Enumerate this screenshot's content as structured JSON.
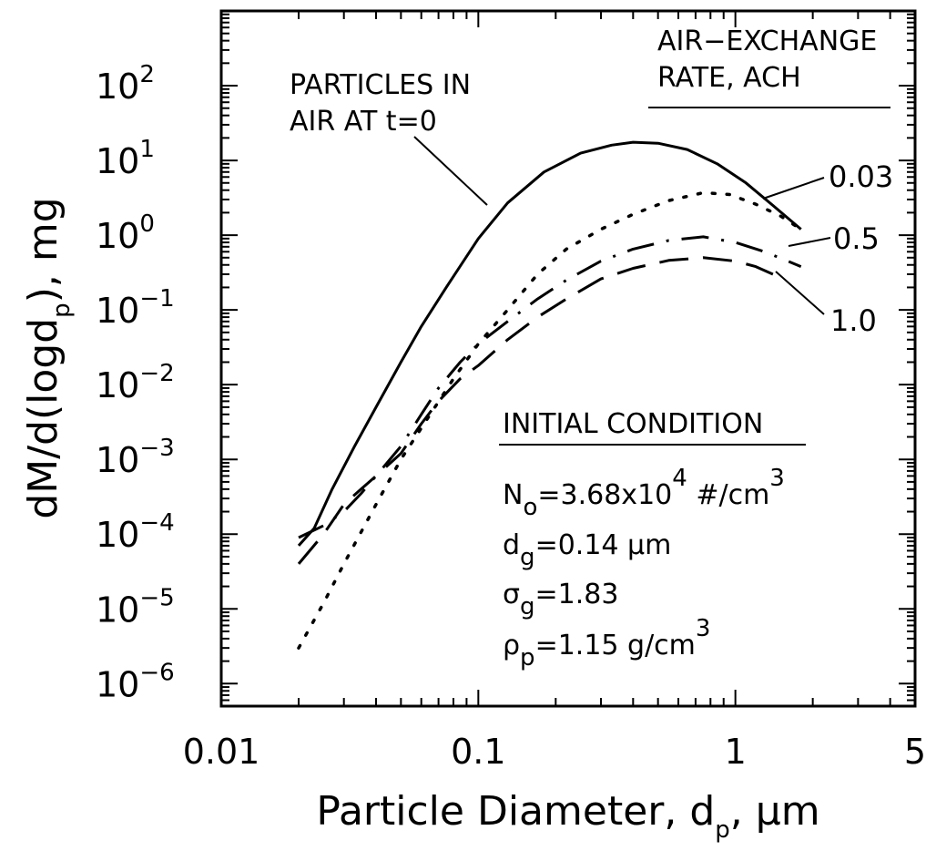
{
  "chart_data": {
    "type": "line",
    "x_scale": "log",
    "y_scale": "log",
    "xlim": [
      0.01,
      5
    ],
    "ylim": [
      5e-07,
      1000
    ],
    "grid": false,
    "xlabel": "Particle Diameter, d_p, μm",
    "xlabel_parts": {
      "main": "Particle Diameter, d",
      "sub": "p",
      "tail": ", μm"
    },
    "ylabel": "dM/d(logd_p), mg",
    "ylabel_parts": {
      "main": "dM/d(logd",
      "sub": "p",
      "tail": "), mg"
    },
    "x_ticks": [
      {
        "value": 0.01,
        "label": "0.01"
      },
      {
        "value": 0.1,
        "label": "0.1"
      },
      {
        "value": 1,
        "label": "1"
      },
      {
        "value": 5,
        "label": "5"
      }
    ],
    "y_ticks": [
      {
        "value": 1e-06,
        "base": "10",
        "exp": "−6"
      },
      {
        "value": 1e-05,
        "base": "10",
        "exp": "−5"
      },
      {
        "value": 0.0001,
        "base": "10",
        "exp": "−4"
      },
      {
        "value": 0.001,
        "base": "10",
        "exp": "−3"
      },
      {
        "value": 0.01,
        "base": "10",
        "exp": "−2"
      },
      {
        "value": 0.1,
        "base": "10",
        "exp": "−1"
      },
      {
        "value": 1,
        "base": "10",
        "exp": "0"
      },
      {
        "value": 10,
        "base": "10",
        "exp": "1"
      },
      {
        "value": 100,
        "base": "10",
        "exp": "2"
      }
    ],
    "series": [
      {
        "name": "PARTICLES IN AIR AT t=0",
        "style": "solid",
        "x": [
          0.02,
          0.023,
          0.027,
          0.033,
          0.04,
          0.05,
          0.06,
          0.075,
          0.1,
          0.13,
          0.18,
          0.25,
          0.33,
          0.4,
          0.5,
          0.65,
          0.85,
          1.1,
          1.4,
          1.8
        ],
        "y": [
          7e-05,
          0.00012,
          0.0004,
          0.0015,
          0.005,
          0.02,
          0.06,
          0.2,
          0.9,
          2.7,
          7,
          12.5,
          16,
          17.5,
          17,
          14,
          9,
          5,
          2.5,
          1.2
        ]
      },
      {
        "name": "0.03",
        "style": "dotted",
        "x": [
          0.02,
          0.025,
          0.03,
          0.04,
          0.05,
          0.065,
          0.08,
          0.1,
          0.13,
          0.17,
          0.22,
          0.3,
          0.4,
          0.55,
          0.75,
          0.95,
          1.2,
          1.5,
          1.8
        ],
        "y": [
          3e-06,
          1.2e-05,
          4e-05,
          0.00025,
          0.001,
          0.004,
          0.012,
          0.035,
          0.1,
          0.3,
          0.65,
          1.2,
          1.9,
          2.9,
          3.7,
          3.5,
          2.6,
          1.8,
          1.2
        ]
      },
      {
        "name": "0.5",
        "style": "dash-dot",
        "x": [
          0.02,
          0.025,
          0.03,
          0.035,
          0.04,
          0.05,
          0.06,
          0.07,
          0.085,
          0.1,
          0.13,
          0.17,
          0.22,
          0.3,
          0.4,
          0.55,
          0.75,
          1.0,
          1.3,
          1.6,
          1.8
        ],
        "y": [
          9e-05,
          0.00013,
          0.0002,
          0.00035,
          0.0006,
          0.0015,
          0.004,
          0.009,
          0.02,
          0.035,
          0.07,
          0.14,
          0.25,
          0.45,
          0.65,
          0.85,
          0.95,
          0.8,
          0.6,
          0.45,
          0.38
        ]
      },
      {
        "name": "1.0",
        "style": "dashed",
        "x": [
          0.02,
          0.025,
          0.03,
          0.035,
          0.04,
          0.05,
          0.06,
          0.07,
          0.085,
          0.1,
          0.13,
          0.17,
          0.22,
          0.3,
          0.4,
          0.55,
          0.75,
          1.0,
          1.2,
          1.4
        ],
        "y": [
          4e-05,
          0.0001,
          0.00025,
          0.0004,
          0.0006,
          0.0012,
          0.003,
          0.006,
          0.012,
          0.018,
          0.04,
          0.08,
          0.14,
          0.26,
          0.36,
          0.46,
          0.5,
          0.45,
          0.38,
          0.3
        ]
      }
    ],
    "annotations": {
      "t0_line1": "PARTICLES IN",
      "t0_line2": "AIR AT t=0",
      "legend_title_line1": "AIR−EXCHANGE",
      "legend_title_line2": "RATE, ACH",
      "rate_003": "0.03",
      "rate_05": "0.5",
      "rate_10": "1.0",
      "init_title": "INITIAL CONDITION",
      "n0_main": "N",
      "n0_sub": "o",
      "n0_mid": "=3.68x10",
      "n0_sup": "4",
      "n0_unit": " #/cm",
      "n0_unit_sup": "3",
      "dg_main": "d",
      "dg_sub": "g",
      "dg_rest": "=0.14 μm",
      "sg_main": "σ",
      "sg_sub": "g",
      "sg_rest": "=1.83",
      "rho_main": "ρ",
      "rho_sub": "p",
      "rho_rest": "=1.15 g/cm",
      "rho_sup": "3"
    }
  }
}
